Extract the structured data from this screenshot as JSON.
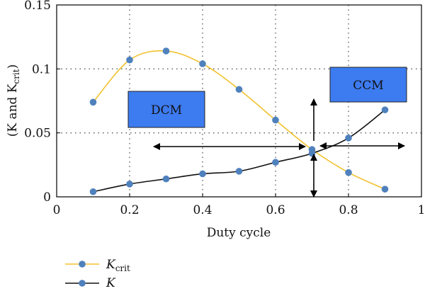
{
  "chart_data": {
    "type": "line",
    "xlabel": "Duty cycle",
    "ylabel": "(K and K",
    "ylabel_sub": "crit",
    "ylabel_close": ")",
    "xlim": [
      0,
      1
    ],
    "ylim": [
      0,
      0.15
    ],
    "x_ticks": [
      "0",
      "0.2",
      "0.4",
      "0.6",
      "0.8",
      "1"
    ],
    "x_tick_values": [
      0,
      0.2,
      0.4,
      0.6,
      0.8,
      1
    ],
    "y_ticks": [
      "0",
      "0.05",
      "0.1",
      "0.15"
    ],
    "y_tick_values": [
      0,
      0.05,
      0.1,
      0.15
    ],
    "grid": "dotted",
    "legend_position": "bottom-left",
    "series": [
      {
        "name": "K",
        "name_sub": "crit",
        "color": "#f2c12e",
        "marker_color": "#4f81bd",
        "x": [
          0.1,
          0.2,
          0.3,
          0.4,
          0.5,
          0.6,
          0.7,
          0.8,
          0.9
        ],
        "y": [
          0.074,
          0.107,
          0.114,
          0.104,
          0.084,
          0.06,
          0.037,
          0.019,
          0.006
        ]
      },
      {
        "name": "K",
        "name_sub": "",
        "color": "#111111",
        "marker_color": "#4f81bd",
        "x": [
          0.1,
          0.2,
          0.3,
          0.4,
          0.5,
          0.6,
          0.7,
          0.8,
          0.9
        ],
        "y": [
          0.004,
          0.01,
          0.014,
          0.018,
          0.02,
          0.027,
          0.034,
          0.046,
          0.068
        ]
      }
    ],
    "annotations": [
      {
        "label": "DCM",
        "fill": "#3d7bf0"
      },
      {
        "label": "CCM",
        "fill": "#3d7bf0"
      }
    ]
  }
}
